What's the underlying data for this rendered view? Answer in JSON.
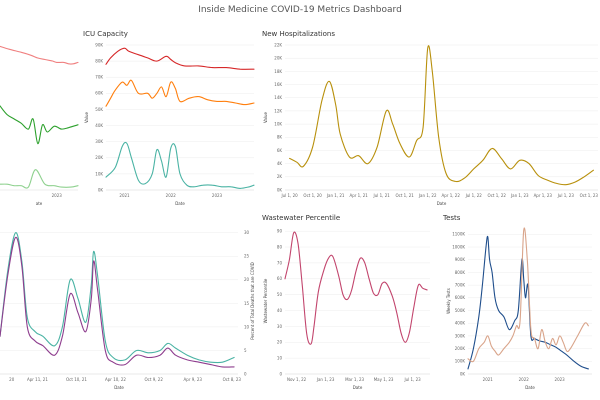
{
  "dashboard": {
    "title": "Inside Medicine COVID-19 Metrics Dashboard"
  },
  "chart_data": [
    {
      "id": "left-top",
      "type": "line",
      "title": "",
      "xlabel": "ate",
      "ylabel": "",
      "x_ticks": [
        "2023"
      ],
      "x_tick_values": [
        2023.0
      ],
      "x_range": [
        2020.6,
        2023.9
      ],
      "y_range": [
        0,
        100
      ],
      "series": [
        {
          "color": "#f08080",
          "x": [
            2020.6,
            2021.0,
            2021.5,
            2021.9,
            2022.2,
            2022.5,
            2022.8,
            2023.0,
            2023.3,
            2023.5,
            2023.7,
            2023.9
          ],
          "values": [
            99,
            97,
            95,
            93,
            91,
            90,
            89,
            88,
            88,
            87,
            87,
            88
          ]
        },
        {
          "color": "#2ca02c",
          "x": [
            2020.6,
            2020.9,
            2021.2,
            2021.5,
            2021.8,
            2022.0,
            2022.2,
            2022.4,
            2022.6,
            2022.9,
            2023.2,
            2023.5,
            2023.9
          ],
          "values": [
            58,
            52,
            49,
            46,
            42,
            49,
            32,
            45,
            40,
            44,
            42,
            43,
            45
          ]
        },
        {
          "color": "#8fd18f",
          "x": [
            2020.6,
            2020.9,
            2021.2,
            2021.5,
            2021.8,
            2022.1,
            2022.5,
            2022.9,
            2023.2,
            2023.6,
            2023.9
          ],
          "values": [
            4,
            4,
            3,
            3,
            2,
            14,
            4,
            3,
            2,
            2,
            3
          ]
        }
      ]
    },
    {
      "id": "icu",
      "type": "line",
      "title": "ICU Capacity",
      "xlabel": "Date",
      "ylabel": "Value",
      "y_ticks": [
        "0K",
        "10K",
        "20K",
        "30K",
        "40K",
        "50K",
        "60K",
        "70K",
        "80K",
        "90K"
      ],
      "y_tick_values": [
        0,
        10,
        20,
        30,
        40,
        50,
        60,
        70,
        80,
        90
      ],
      "x_ticks": [
        "2021",
        "2022",
        "2023"
      ],
      "x_tick_values": [
        2021.0,
        2022.0,
        2023.0
      ],
      "x_range": [
        2020.6,
        2023.8
      ],
      "y_range": [
        0,
        90
      ],
      "series": [
        {
          "color": "#d62728",
          "x": [
            2020.6,
            2020.7,
            2020.85,
            2021.0,
            2021.1,
            2021.3,
            2021.5,
            2021.7,
            2021.9,
            2022.0,
            2022.1,
            2022.3,
            2022.6,
            2022.9,
            2023.2,
            2023.5,
            2023.8
          ],
          "values": [
            78,
            82,
            86,
            88,
            86,
            84,
            82,
            80,
            83,
            81,
            79,
            77,
            77,
            76,
            76,
            75,
            75
          ]
        },
        {
          "color": "#ff7f0e",
          "x": [
            2020.6,
            2020.7,
            2020.8,
            2020.95,
            2021.05,
            2021.15,
            2021.3,
            2021.5,
            2021.6,
            2021.7,
            2021.8,
            2021.9,
            2022.0,
            2022.1,
            2022.2,
            2022.4,
            2022.6,
            2022.8,
            2023.0,
            2023.2,
            2023.4,
            2023.6,
            2023.8
          ],
          "values": [
            52,
            57,
            62,
            67,
            65,
            68,
            60,
            60,
            57,
            60,
            64,
            58,
            67,
            63,
            55,
            57,
            58,
            56,
            55,
            55,
            54,
            53,
            54
          ]
        },
        {
          "color": "#4ab3a4",
          "x": [
            2020.6,
            2020.8,
            2020.95,
            2021.05,
            2021.15,
            2021.3,
            2021.45,
            2021.6,
            2021.7,
            2021.8,
            2021.9,
            2022.0,
            2022.1,
            2022.2,
            2022.35,
            2022.5,
            2022.7,
            2022.9,
            2023.1,
            2023.3,
            2023.5,
            2023.7,
            2023.8
          ],
          "values": [
            8,
            14,
            27,
            29,
            20,
            6,
            4,
            10,
            25,
            18,
            8,
            26,
            27,
            10,
            3,
            2,
            3,
            3,
            2,
            2,
            1,
            2,
            3
          ]
        }
      ]
    },
    {
      "id": "hospitalizations",
      "type": "line",
      "title": "New Hospitalizations",
      "xlabel": "Date",
      "ylabel": "Value",
      "y_ticks": [
        "0K",
        "2K",
        "4K",
        "6K",
        "8K",
        "10K",
        "12K",
        "14K",
        "16K",
        "18K",
        "20K",
        "22K"
      ],
      "y_tick_values": [
        0,
        2,
        4,
        6,
        8,
        10,
        12,
        14,
        16,
        18,
        20,
        22
      ],
      "x_ticks": [
        "Jul 1, 20",
        "Oct 1, 20",
        "Jan 1, 21",
        "Apr 1, 21",
        "Jul 1, 21",
        "Oct 1, 21",
        "Jan 1, 22",
        "Apr 1, 22",
        "Jul 1, 22",
        "Oct 1, 22",
        "Jan 1, 23",
        "Apr 1, 23",
        "Jul 1, 23",
        "Oct 1, 23"
      ],
      "x_tick_values": [
        2020.5,
        2020.75,
        2021.0,
        2021.25,
        2021.5,
        2021.75,
        2022.0,
        2022.25,
        2022.5,
        2022.75,
        2023.0,
        2023.25,
        2023.5,
        2023.75
      ],
      "x_range": [
        2020.45,
        2023.85
      ],
      "y_range": [
        0,
        22
      ],
      "series": [
        {
          "color": "#b8900c",
          "x": [
            2020.5,
            2020.58,
            2020.65,
            2020.75,
            2020.85,
            2020.93,
            2021.0,
            2021.05,
            2021.15,
            2021.25,
            2021.35,
            2021.45,
            2021.55,
            2021.62,
            2021.7,
            2021.8,
            2021.88,
            2021.95,
            2022.0,
            2022.05,
            2022.12,
            2022.2,
            2022.3,
            2022.4,
            2022.5,
            2022.6,
            2022.7,
            2022.8,
            2022.9,
            2023.0,
            2023.1,
            2023.2,
            2023.3,
            2023.4,
            2023.5,
            2023.6,
            2023.7,
            2023.8
          ],
          "values": [
            4.8,
            4.2,
            3.6,
            6.5,
            13.5,
            16.5,
            13.0,
            8.5,
            5.0,
            5.2,
            4.0,
            6.5,
            12.0,
            10.0,
            7.0,
            5.0,
            7.5,
            9.5,
            21.5,
            18.0,
            8.0,
            2.5,
            1.3,
            1.8,
            3.2,
            4.5,
            6.3,
            4.8,
            3.2,
            4.5,
            4.0,
            2.2,
            1.5,
            1.0,
            0.8,
            1.2,
            2.0,
            3.0
          ]
        }
      ]
    },
    {
      "id": "left-bottom",
      "type": "line",
      "title": "",
      "xlabel": "Date",
      "ylabel": "Percent of Total Deaths that are COVID",
      "y_ticks": [
        "0",
        "5",
        "10",
        "15",
        "20",
        "25",
        "30"
      ],
      "y_tick_values": [
        0,
        5,
        10,
        15,
        20,
        25,
        30
      ],
      "x_ticks": [
        "20",
        "Apr 11, 21",
        "Oct 10, 21",
        "Apr 10, 22",
        "Oct 9, 22",
        "Apr 9, 23",
        "Oct 8, 23"
      ],
      "x_tick_values": [
        2020.95,
        2021.28,
        2021.78,
        2022.28,
        2022.77,
        2023.27,
        2023.77
      ],
      "x_range": [
        2020.8,
        2023.85
      ],
      "y_range": [
        0,
        31
      ],
      "series": [
        {
          "color": "#4ab3a4",
          "x": [
            2020.8,
            2020.9,
            2021.0,
            2021.08,
            2021.15,
            2021.25,
            2021.35,
            2021.5,
            2021.6,
            2021.7,
            2021.8,
            2021.9,
            2021.97,
            2022.0,
            2022.05,
            2022.15,
            2022.25,
            2022.4,
            2022.55,
            2022.7,
            2022.85,
            2022.95,
            2023.05,
            2023.2,
            2023.35,
            2023.5,
            2023.65,
            2023.8
          ],
          "values": [
            8,
            22,
            30,
            24,
            12,
            9,
            8,
            6,
            10,
            20,
            16,
            11,
            19,
            26,
            21,
            7,
            3.5,
            3,
            5,
            4.5,
            5,
            6.5,
            5.5,
            4,
            3,
            2.5,
            2.5,
            3.5
          ]
        },
        {
          "color": "#8e3d8e",
          "x": [
            2020.8,
            2020.9,
            2021.0,
            2021.08,
            2021.15,
            2021.25,
            2021.35,
            2021.5,
            2021.6,
            2021.7,
            2021.8,
            2021.9,
            2021.97,
            2022.0,
            2022.05,
            2022.15,
            2022.25,
            2022.4,
            2022.55,
            2022.7,
            2022.85,
            2022.95,
            2023.05,
            2023.2,
            2023.35,
            2023.5,
            2023.65,
            2023.8
          ],
          "values": [
            8,
            21,
            29,
            23,
            10,
            7,
            6,
            4,
            8,
            17,
            13,
            9,
            16,
            24,
            18,
            5,
            2.5,
            2,
            4,
            3.5,
            4,
            5.5,
            4,
            3,
            2.5,
            2,
            1.5,
            1.5
          ]
        }
      ]
    },
    {
      "id": "wastewater",
      "type": "line",
      "title": "Wastewater Percentile",
      "xlabel": "Date",
      "ylabel": "Wastewater Percentile",
      "y_ticks": [
        "0",
        "10",
        "20",
        "30",
        "40",
        "50",
        "60",
        "70",
        "80",
        "90"
      ],
      "y_tick_values": [
        0,
        10,
        20,
        30,
        40,
        50,
        60,
        70,
        80,
        90
      ],
      "x_ticks": [
        "Nov 1, 22",
        "Jan 1, 23",
        "Mar 1, 23",
        "May 1, 23",
        "Jul 1, 23"
      ],
      "x_tick_values": [
        0.8,
        2.8,
        4.8,
        6.8,
        8.8
      ],
      "x_range": [
        0.0,
        10.0
      ],
      "y_range": [
        0,
        92
      ],
      "series": [
        {
          "color": "#c2456d",
          "x": [
            0.0,
            0.3,
            0.6,
            0.9,
            1.2,
            1.5,
            1.8,
            2.0,
            2.3,
            2.7,
            3.0,
            3.3,
            3.7,
            4.0,
            4.3,
            4.6,
            4.9,
            5.2,
            5.5,
            5.8,
            6.1,
            6.4,
            6.7,
            7.0,
            7.4,
            7.7,
            8.0,
            8.3,
            8.6,
            8.9,
            9.2,
            9.5,
            9.8
          ],
          "values": [
            60,
            72,
            89,
            82,
            55,
            25,
            19,
            30,
            52,
            66,
            73,
            74,
            62,
            50,
            47,
            53,
            65,
            73,
            70,
            60,
            51,
            50,
            57,
            57,
            49,
            39,
            26,
            20,
            27,
            43,
            56,
            54,
            53
          ]
        }
      ]
    },
    {
      "id": "tests",
      "type": "line",
      "title": "Tests",
      "xlabel": "Date",
      "ylabel": "Weekly Tests",
      "y_ticks": [
        "0K",
        "100K",
        "200K",
        "300K",
        "400K",
        "500K",
        "600K",
        "700K",
        "800K",
        "900K",
        "1000K",
        "1100K"
      ],
      "y_tick_values": [
        0,
        100,
        200,
        300,
        400,
        500,
        600,
        700,
        800,
        900,
        1000,
        1100
      ],
      "x_ticks": [
        "2021",
        "2022",
        "2023"
      ],
      "x_tick_values": [
        2021.0,
        2022.0,
        2023.0
      ],
      "x_range": [
        2020.45,
        2023.9
      ],
      "y_range": [
        0,
        1150
      ],
      "series": [
        {
          "color": "#1f4e8c",
          "x": [
            2020.45,
            2020.6,
            2020.75,
            2020.85,
            2020.95,
            2021.0,
            2021.05,
            2021.12,
            2021.2,
            2021.3,
            2021.45,
            2021.6,
            2021.75,
            2021.85,
            2021.95,
            2022.0,
            2022.05,
            2022.12,
            2022.2,
            2022.3,
            2022.45,
            2022.6,
            2022.75,
            2022.9,
            2023.05,
            2023.2,
            2023.4,
            2023.6,
            2023.8
          ],
          "values": [
            40,
            200,
            450,
            700,
            1000,
            1080,
            900,
            800,
            600,
            500,
            450,
            350,
            420,
            500,
            900,
            750,
            600,
            700,
            300,
            280,
            260,
            250,
            230,
            210,
            180,
            150,
            100,
            60,
            40
          ]
        },
        {
          "color": "#d9a48a",
          "x": [
            2020.45,
            2020.6,
            2020.75,
            2020.9,
            2021.0,
            2021.1,
            2021.2,
            2021.3,
            2021.45,
            2021.6,
            2021.7,
            2021.8,
            2021.9,
            2022.0,
            2022.1,
            2022.2,
            2022.3,
            2022.4,
            2022.5,
            2022.6,
            2022.7,
            2022.8,
            2022.9,
            2023.0,
            2023.1,
            2023.2,
            2023.3,
            2023.5,
            2023.7,
            2023.8
          ],
          "values": [
            120,
            100,
            200,
            250,
            300,
            220,
            180,
            150,
            200,
            250,
            300,
            380,
            420,
            1130,
            900,
            350,
            280,
            200,
            350,
            250,
            200,
            280,
            230,
            300,
            250,
            180,
            200,
            300,
            400,
            380
          ]
        }
      ]
    }
  ]
}
